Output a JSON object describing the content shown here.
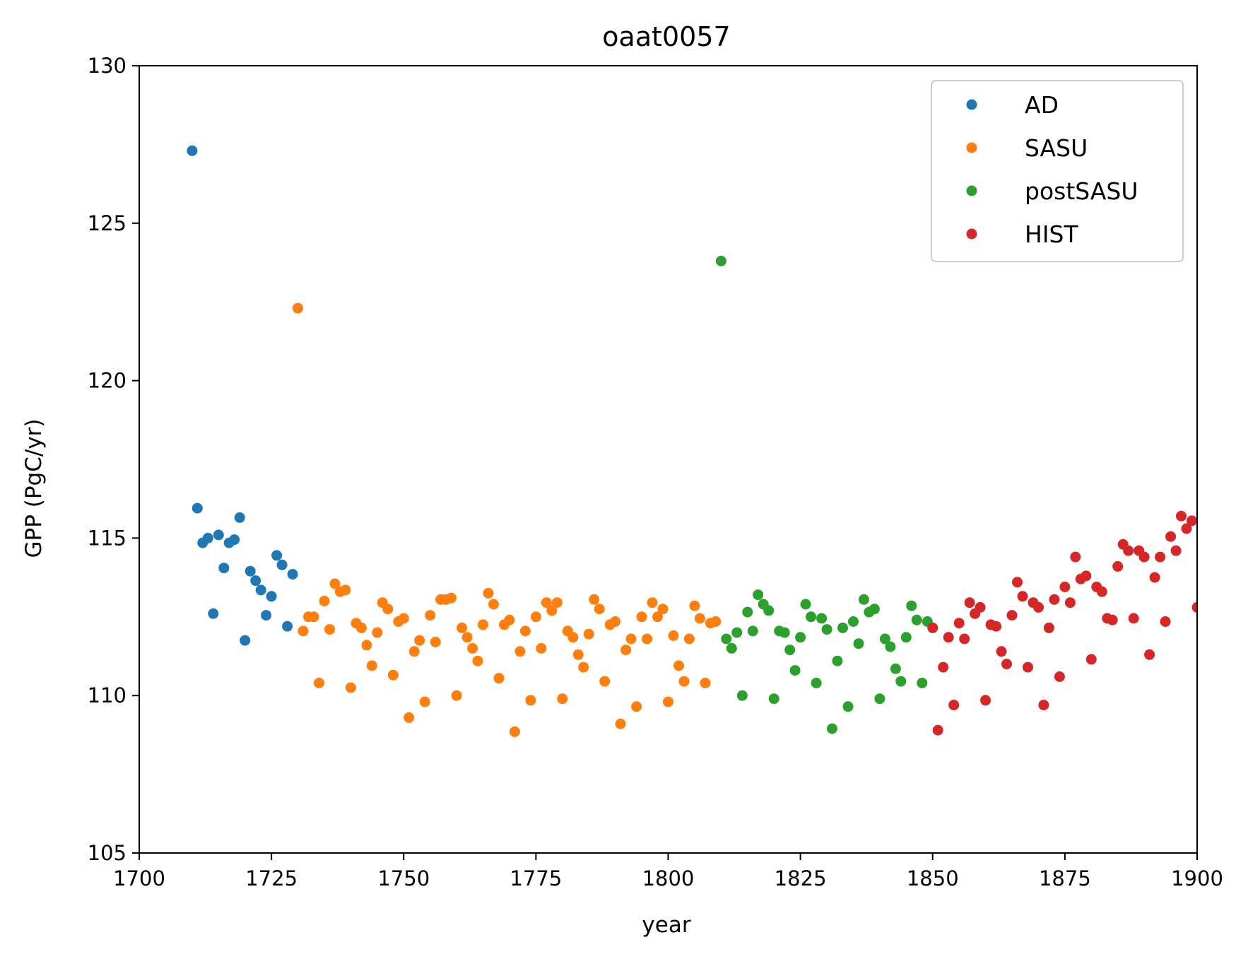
{
  "chart_data": {
    "type": "scatter",
    "title": "oaat0057",
    "xlabel": "year",
    "ylabel": "GPP (PgC/yr)",
    "xlim": [
      1700,
      1900
    ],
    "ylim": [
      105,
      130
    ],
    "xticks": [
      "1700",
      "1725",
      "1750",
      "1775",
      "1800",
      "1825",
      "1850",
      "1875",
      "1900"
    ],
    "yticks": [
      "105",
      "110",
      "115",
      "120",
      "125",
      "130"
    ],
    "grid": false,
    "legend_position": "top-right",
    "series": [
      {
        "name": "AD",
        "color": "#1f77b4",
        "x": [
          1710,
          1711,
          1712,
          1713,
          1714,
          1715,
          1716,
          1717,
          1718,
          1719,
          1720,
          1721,
          1722,
          1723,
          1724,
          1725,
          1726,
          1727,
          1728,
          1729
        ],
        "y": [
          127.3,
          115.95,
          114.85,
          115.0,
          112.6,
          115.1,
          114.05,
          114.85,
          114.95,
          115.65,
          111.75,
          113.95,
          113.65,
          113.35,
          112.55,
          113.15,
          114.45,
          114.15,
          112.2,
          113.85
        ]
      },
      {
        "name": "SASU",
        "color": "#ff7f0e",
        "x": [
          1730,
          1731,
          1732,
          1733,
          1734,
          1735,
          1736,
          1737,
          1738,
          1739,
          1740,
          1741,
          1742,
          1743,
          1744,
          1745,
          1746,
          1747,
          1748,
          1749,
          1750,
          1751,
          1752,
          1753,
          1754,
          1755,
          1756,
          1757,
          1758,
          1759,
          1760,
          1761,
          1762,
          1763,
          1764,
          1765,
          1766,
          1767,
          1768,
          1769,
          1770,
          1771,
          1772,
          1773,
          1774,
          1775,
          1776,
          1777,
          1778,
          1779,
          1780,
          1781,
          1782,
          1783,
          1784,
          1785,
          1786,
          1787,
          1788,
          1789,
          1790,
          1791,
          1792,
          1793,
          1794,
          1795,
          1796,
          1797,
          1798,
          1799,
          1800,
          1801,
          1802,
          1803,
          1804,
          1805,
          1806,
          1807,
          1808,
          1809
        ],
        "y": [
          122.3,
          112.05,
          112.5,
          112.5,
          110.4,
          113.0,
          112.1,
          113.55,
          113.3,
          113.35,
          110.25,
          112.3,
          112.15,
          111.6,
          110.95,
          112.0,
          112.95,
          112.75,
          110.65,
          112.35,
          112.45,
          109.3,
          111.4,
          111.75,
          109.8,
          112.55,
          111.7,
          113.05,
          113.05,
          113.1,
          110.0,
          112.15,
          111.85,
          111.5,
          111.1,
          112.25,
          113.25,
          112.9,
          110.55,
          112.25,
          112.4,
          108.85,
          111.4,
          112.05,
          109.85,
          112.5,
          111.5,
          112.95,
          112.7,
          112.95,
          109.9,
          112.05,
          111.85,
          111.3,
          110.9,
          111.95,
          113.05,
          112.75,
          110.45,
          112.25,
          112.35,
          109.1,
          111.45,
          111.8,
          109.65,
          112.5,
          111.8,
          112.95,
          112.5,
          112.75,
          109.8,
          111.9,
          110.95,
          110.45,
          111.8,
          112.85,
          112.45,
          110.4,
          112.3,
          112.35
        ]
      },
      {
        "name": "postSASU",
        "color": "#2ca02c",
        "x": [
          1810,
          1811,
          1812,
          1813,
          1814,
          1815,
          1816,
          1817,
          1818,
          1819,
          1820,
          1821,
          1822,
          1823,
          1824,
          1825,
          1826,
          1827,
          1828,
          1829,
          1830,
          1831,
          1832,
          1833,
          1834,
          1835,
          1836,
          1837,
          1838,
          1839,
          1840,
          1841,
          1842,
          1843,
          1844,
          1845,
          1846,
          1847,
          1848,
          1849
        ],
        "y": [
          123.8,
          111.8,
          111.5,
          112.0,
          110.0,
          112.65,
          112.05,
          113.2,
          112.9,
          112.7,
          109.9,
          112.05,
          112.0,
          111.45,
          110.8,
          111.85,
          112.9,
          112.5,
          110.4,
          112.45,
          112.1,
          108.95,
          111.1,
          112.15,
          109.65,
          112.35,
          111.65,
          113.05,
          112.65,
          112.75,
          109.9,
          111.8,
          111.55,
          110.85,
          110.45,
          111.85,
          112.85,
          112.4,
          110.4,
          112.35
        ]
      },
      {
        "name": "HIST",
        "color": "#d62728",
        "x": [
          1850,
          1851,
          1852,
          1853,
          1854,
          1855,
          1856,
          1857,
          1858,
          1859,
          1860,
          1861,
          1862,
          1863,
          1864,
          1865,
          1866,
          1867,
          1868,
          1869,
          1870,
          1871,
          1872,
          1873,
          1874,
          1875,
          1876,
          1877,
          1878,
          1879,
          1880,
          1881,
          1882,
          1883,
          1884,
          1885,
          1886,
          1887,
          1888,
          1889,
          1890,
          1891,
          1892,
          1893,
          1894,
          1895,
          1896,
          1897,
          1898,
          1899,
          1900
        ],
        "y": [
          112.15,
          108.9,
          110.9,
          111.85,
          109.7,
          112.3,
          111.8,
          112.95,
          112.6,
          112.8,
          109.85,
          112.25,
          112.2,
          111.4,
          111.0,
          112.55,
          113.6,
          113.15,
          110.9,
          112.95,
          112.8,
          109.7,
          112.15,
          113.05,
          110.6,
          113.45,
          112.95,
          114.4,
          113.7,
          113.8,
          111.15,
          113.45,
          113.3,
          112.45,
          112.4,
          114.1,
          114.8,
          114.6,
          112.45,
          114.6,
          114.4,
          111.3,
          113.75,
          114.4,
          112.35,
          115.05,
          114.6,
          115.7,
          115.3,
          115.55,
          112.8
        ]
      }
    ]
  }
}
